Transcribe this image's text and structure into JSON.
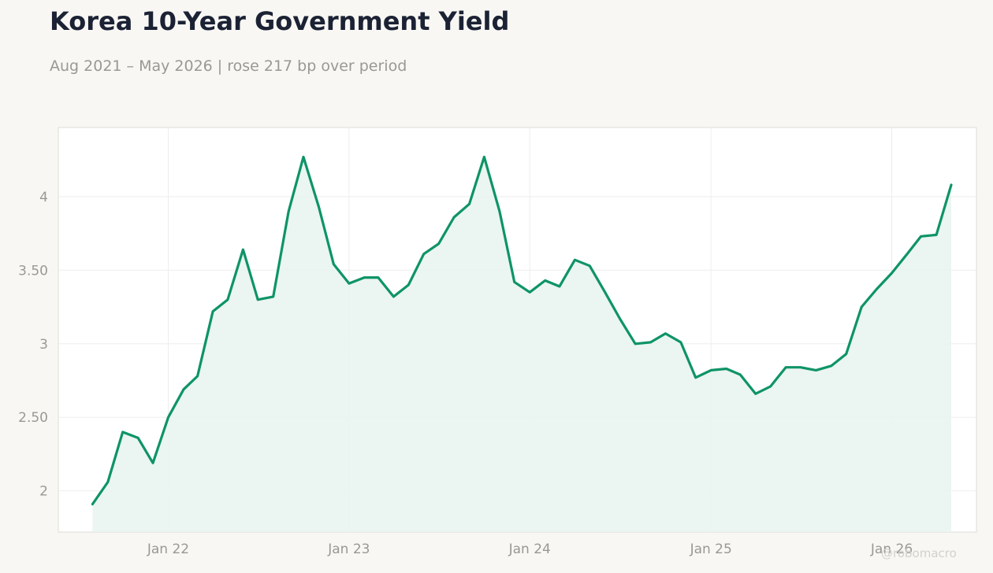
{
  "header": {
    "title": "Korea 10-Year Government Yield",
    "subtitle": "Aug 2021 – May 2026 | rose 217 bp over period"
  },
  "watermark": "@robomacro",
  "colors": {
    "line": "#0e9466",
    "fill": "#e9f4f0",
    "grid": "#eeeeee",
    "frame": "#dcdcd6",
    "background": "#f8f7f4",
    "plot_background": "#ffffff"
  },
  "chart_data": {
    "type": "area",
    "grid": true,
    "x_start": "2021-08",
    "x_frequency": "monthly",
    "xlim": [
      "2021-05-24",
      "2026-06-21"
    ],
    "ylim": [
      1.72,
      4.47
    ],
    "x_ticks": [
      {
        "date": "2022-01",
        "label": "Jan 22"
      },
      {
        "date": "2023-01",
        "label": "Jan 23"
      },
      {
        "date": "2024-01",
        "label": "Jan 24"
      },
      {
        "date": "2025-01",
        "label": "Jan 25"
      },
      {
        "date": "2026-01",
        "label": "Jan 26"
      }
    ],
    "y_ticks": [
      {
        "value": 2,
        "label": "2"
      },
      {
        "value": 2.5,
        "label": "2.50"
      },
      {
        "value": 3,
        "label": "3"
      },
      {
        "value": 3.5,
        "label": "3.50"
      },
      {
        "value": 4,
        "label": "4"
      }
    ],
    "series": [
      {
        "values": [
          1.91,
          2.06,
          2.4,
          2.36,
          2.19,
          2.5,
          2.69,
          2.78,
          3.22,
          3.3,
          3.64,
          3.3,
          3.32,
          3.9,
          4.27,
          3.93,
          3.54,
          3.41,
          3.45,
          3.45,
          3.32,
          3.4,
          3.61,
          3.68,
          3.86,
          3.95,
          4.27,
          3.9,
          3.42,
          3.35,
          3.43,
          3.39,
          3.57,
          3.53,
          3.35,
          3.17,
          3.0,
          3.01,
          3.07,
          3.01,
          2.77,
          2.82,
          2.83,
          2.79,
          2.66,
          2.71,
          2.84,
          2.84,
          2.82,
          2.85,
          2.93,
          3.25,
          3.37,
          3.48,
          3.61,
          3.73,
          3.74,
          4.08
        ]
      }
    ]
  }
}
